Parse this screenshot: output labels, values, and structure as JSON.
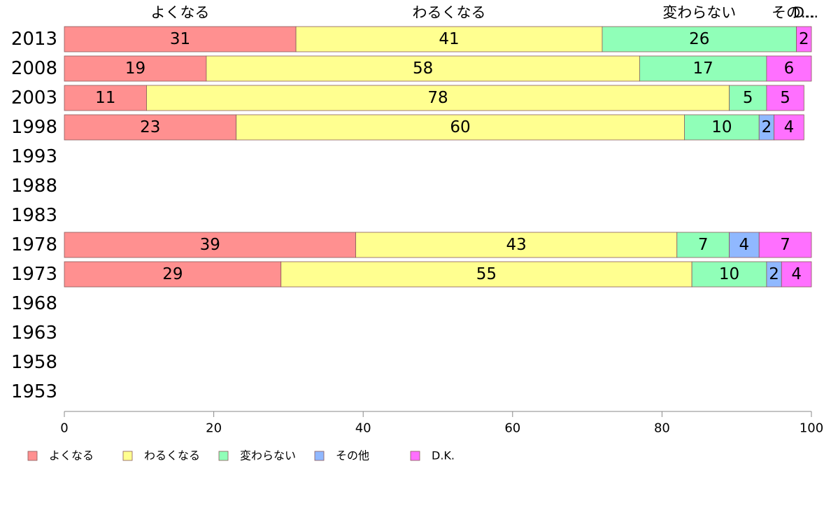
{
  "chart_data": {
    "type": "bar",
    "orientation": "horizontal",
    "stacked": true,
    "xlim": [
      0,
      100
    ],
    "xticks": [
      0,
      20,
      40,
      60,
      80,
      100
    ],
    "categories": [
      "2013",
      "2008",
      "2003",
      "1998",
      "1993",
      "1988",
      "1983",
      "1978",
      "1973",
      "1968",
      "1963",
      "1958",
      "1953"
    ],
    "top_labels": [
      "よくなる",
      "わるくなる",
      "変わらない",
      "その...",
      "D..."
    ],
    "series": [
      {
        "name": "よくなる",
        "color": "#ff9090",
        "values": [
          31,
          19,
          11,
          23,
          null,
          null,
          null,
          39,
          29,
          null,
          null,
          null,
          null
        ]
      },
      {
        "name": "わるくなる",
        "color": "#ffff90",
        "values": [
          41,
          58,
          78,
          60,
          null,
          null,
          null,
          43,
          55,
          null,
          null,
          null,
          null
        ]
      },
      {
        "name": "変わらない",
        "color": "#90ffb8",
        "values": [
          26,
          17,
          5,
          10,
          null,
          null,
          null,
          7,
          10,
          null,
          null,
          null,
          null
        ]
      },
      {
        "name": "その他",
        "color": "#90b8ff",
        "values": [
          0,
          0,
          0,
          2,
          null,
          null,
          null,
          4,
          2,
          null,
          null,
          null,
          null
        ]
      },
      {
        "name": "D.K.",
        "color": "#ff70ff",
        "values": [
          2,
          6,
          5,
          4,
          null,
          null,
          null,
          7,
          4,
          null,
          null,
          null,
          null
        ]
      }
    ],
    "legend_position": "bottom-left"
  }
}
